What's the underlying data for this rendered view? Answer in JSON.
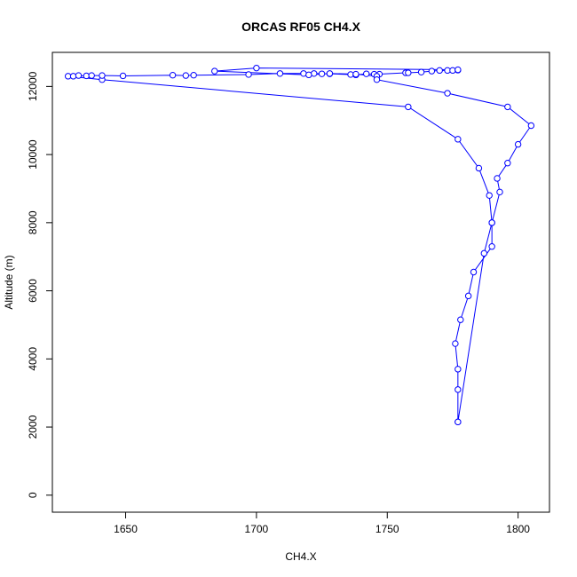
{
  "chart_data": {
    "type": "line",
    "title": "ORCAS RF05 CH4.X",
    "xlabel": "CH4.X",
    "ylabel": "Altitude (m)",
    "xlim": [
      1622,
      1812
    ],
    "ylim": [
      -500,
      13000
    ],
    "xticks": [
      1650,
      1700,
      1750,
      1800
    ],
    "yticks": [
      0,
      2000,
      4000,
      6000,
      8000,
      10000,
      12000
    ],
    "x_tick_labels": [
      "1650",
      "1700",
      "1750",
      "1800"
    ],
    "y_tick_labels": [
      "0",
      "2000",
      "4000",
      "6000",
      "8000",
      "10000",
      "12000"
    ],
    "series": [
      {
        "color": "#0000ff",
        "marker": "open-circle",
        "points": [
          [
            1777,
            2150
          ],
          [
            1777,
            3100
          ],
          [
            1777,
            3700
          ],
          [
            1776,
            4450
          ],
          [
            1778,
            5150
          ],
          [
            1781,
            5850
          ],
          [
            1783,
            6550
          ],
          [
            1790,
            7300
          ],
          [
            1790,
            8000
          ],
          [
            1789,
            8800
          ],
          [
            1785,
            9600
          ],
          [
            1777,
            10450
          ],
          [
            1758,
            11400
          ],
          [
            1641,
            12200
          ],
          [
            1628,
            12300
          ],
          [
            1630,
            12300
          ],
          [
            1632,
            12320
          ],
          [
            1635,
            12310
          ],
          [
            1637,
            12320
          ],
          [
            1641,
            12320
          ],
          [
            1649,
            12310
          ],
          [
            1668,
            12330
          ],
          [
            1673,
            12320
          ],
          [
            1676,
            12330
          ],
          [
            1697,
            12350
          ],
          [
            1709,
            12380
          ],
          [
            1718,
            12380
          ],
          [
            1722,
            12380
          ],
          [
            1725,
            12370
          ],
          [
            1728,
            12370
          ],
          [
            1736,
            12350
          ],
          [
            1738,
            12340
          ],
          [
            1742,
            12370
          ],
          [
            1745,
            12360
          ],
          [
            1747,
            12360
          ],
          [
            1757,
            12400
          ],
          [
            1758,
            12400
          ],
          [
            1763,
            12420
          ],
          [
            1767,
            12450
          ],
          [
            1770,
            12470
          ],
          [
            1773,
            12470
          ],
          [
            1775,
            12470
          ],
          [
            1777,
            12480
          ],
          [
            1777,
            12490
          ],
          [
            1700,
            12540
          ],
          [
            1684,
            12450
          ],
          [
            1720,
            12340
          ],
          [
            1728,
            12380
          ],
          [
            1738,
            12360
          ],
          [
            1746,
            12300
          ],
          [
            1746,
            12200
          ],
          [
            1773,
            11800
          ],
          [
            1796,
            11400
          ],
          [
            1805,
            10850
          ],
          [
            1800,
            10300
          ],
          [
            1796,
            9750
          ],
          [
            1792,
            9300
          ],
          [
            1793,
            8900
          ],
          [
            1790,
            8000
          ],
          [
            1787,
            7100
          ],
          [
            1777,
            2150
          ]
        ]
      }
    ]
  }
}
